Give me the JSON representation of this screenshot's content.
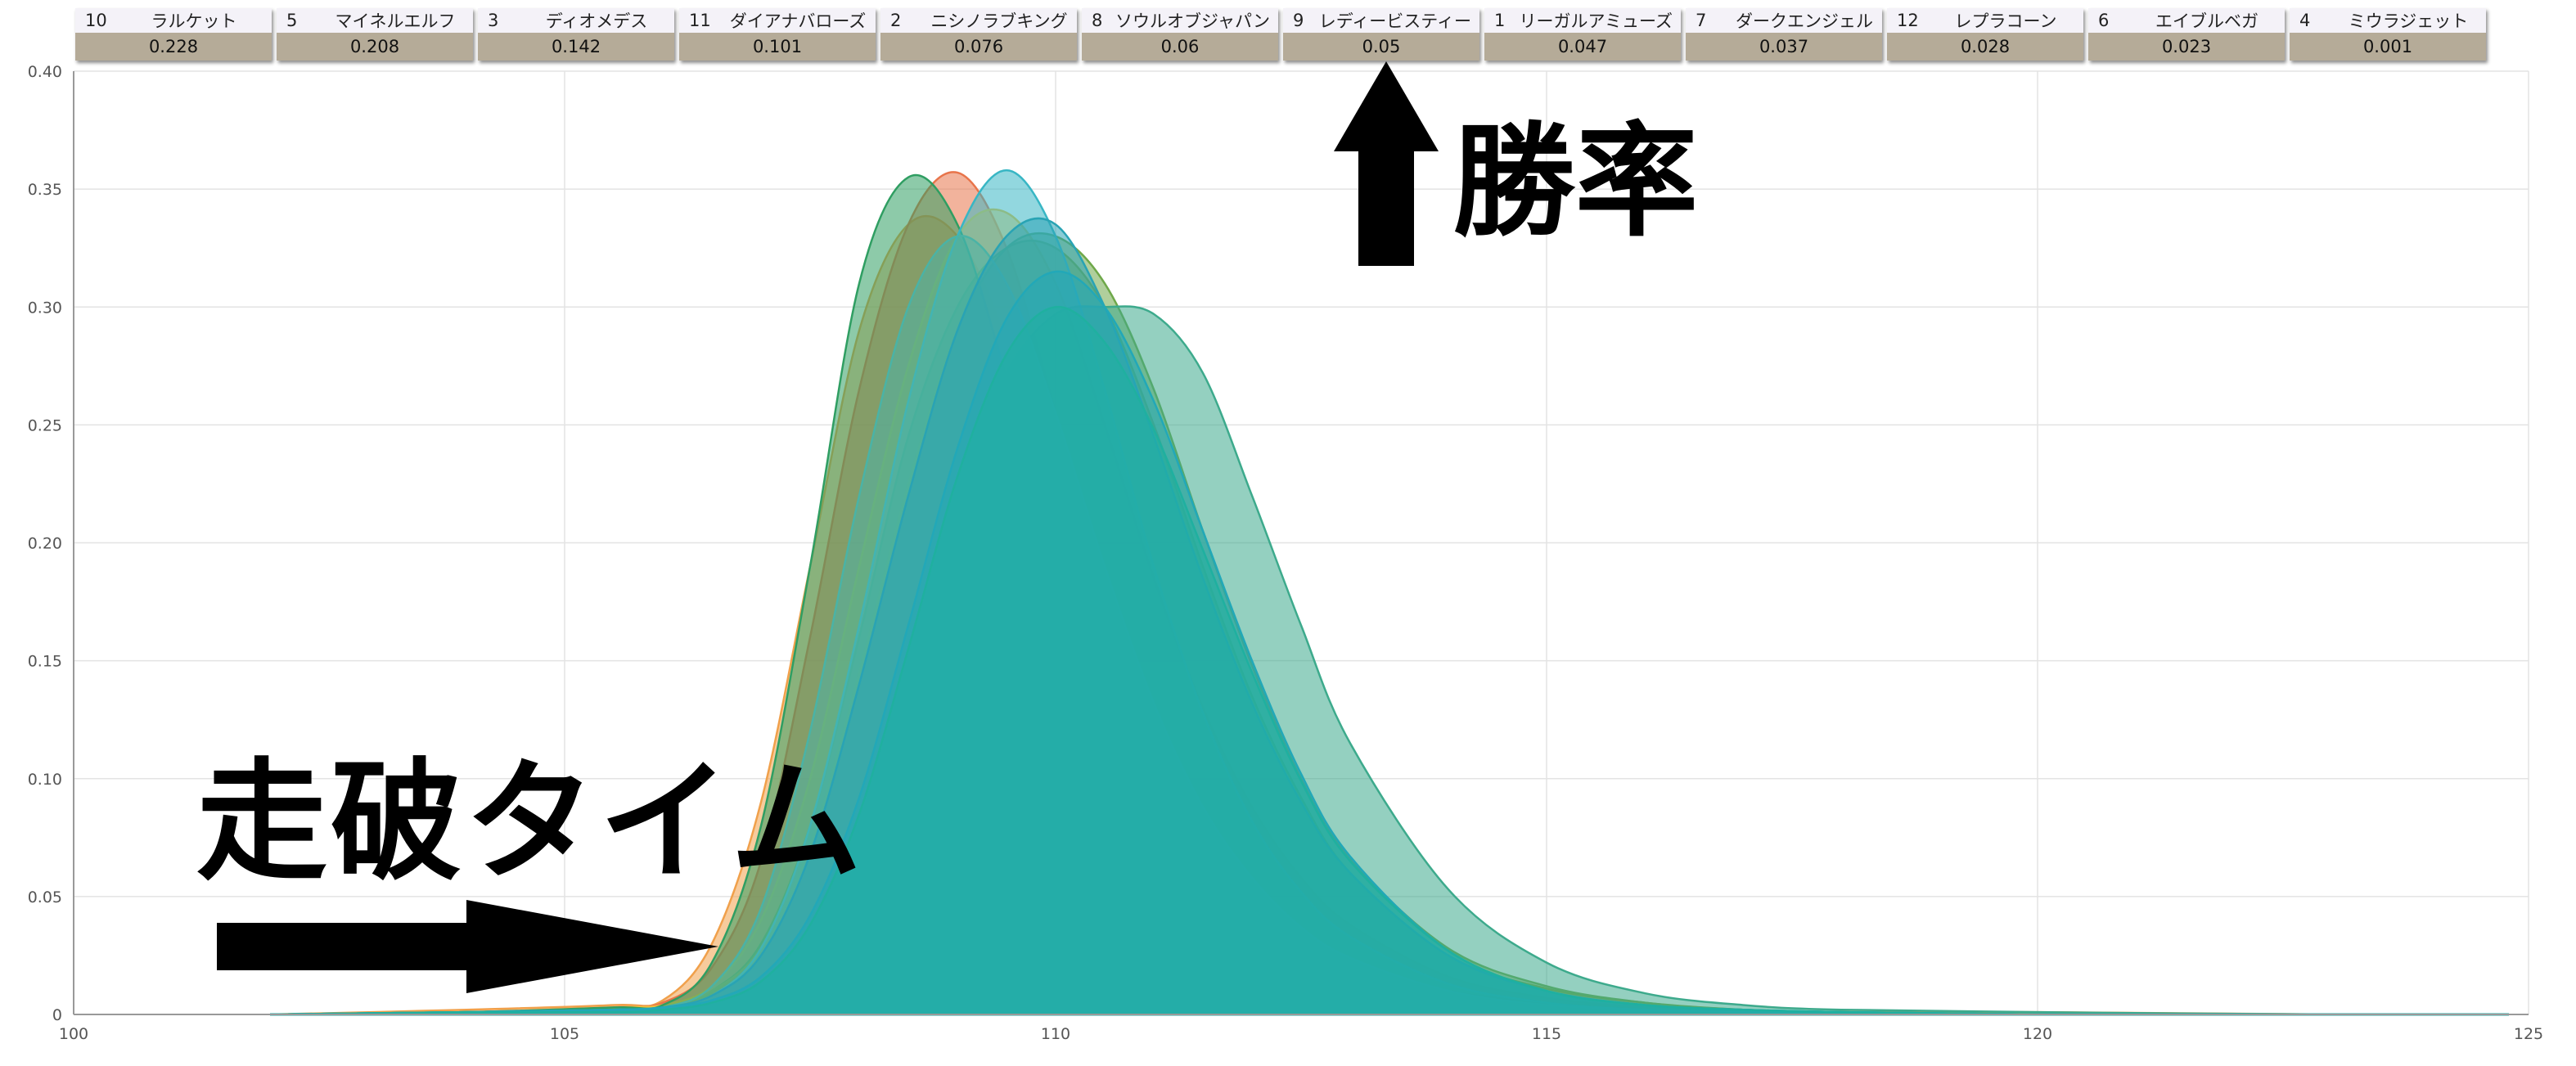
{
  "legend": [
    {
      "num": "10",
      "name": "ラルケット",
      "rate": "0.228",
      "color": "#f0a04b"
    },
    {
      "num": "5",
      "name": "マイネルエルフ",
      "rate": "0.208",
      "color": "#e8744a"
    },
    {
      "num": "3",
      "name": "ディオメデス",
      "rate": "0.142",
      "color": "#f2c33c"
    },
    {
      "num": "11",
      "name": "ダイアナバローズ",
      "rate": "0.101",
      "color": "#7aab3a"
    },
    {
      "num": "2",
      "name": "ニシノラブキング",
      "rate": "0.076",
      "color": "#2f9e62"
    },
    {
      "num": "8",
      "name": "ソウルオブジャパン",
      "rate": "0.06",
      "color": "#6fa84a"
    },
    {
      "num": "9",
      "name": "レディービスティー",
      "rate": "0.05",
      "color": "#38b6c4"
    },
    {
      "num": "1",
      "name": "リーガルアミューズ",
      "rate": "0.047",
      "color": "#3daa8c"
    },
    {
      "num": "7",
      "name": "ダークエンジェル",
      "rate": "0.037",
      "color": "#4ab3a6"
    },
    {
      "num": "12",
      "name": "レプラコーン",
      "rate": "0.028",
      "color": "#29a3b4"
    },
    {
      "num": "6",
      "name": "エイブルベガ",
      "rate": "0.023",
      "color": "#22a8b8"
    },
    {
      "num": "4",
      "name": "ミウラジェット",
      "rate": "0.001",
      "color": "#1fb0a0"
    }
  ],
  "annotations": {
    "win_rate": "勝率",
    "time": "走破タイム"
  },
  "chart_data": {
    "type": "area",
    "xlim": [
      100,
      125
    ],
    "ylim": [
      0,
      0.4
    ],
    "x_ticks": [
      100,
      105,
      110,
      115,
      120,
      125
    ],
    "y_ticks": [
      0,
      0.05,
      0.1,
      0.15,
      0.2,
      0.25,
      0.3,
      0.35,
      0.4
    ],
    "x_tick_labels": [
      "100",
      "105",
      "110",
      "115",
      "120",
      "125"
    ],
    "y_tick_labels": [
      "0",
      "0.05",
      "0.10",
      "0.15",
      "0.20",
      "0.25",
      "0.30",
      "0.35",
      "0.40"
    ],
    "grid": true,
    "x": [
      102,
      104,
      105.5,
      106,
      106.5,
      107,
      107.5,
      108,
      108.5,
      109,
      109.5,
      110,
      110.5,
      111,
      111.5,
      112,
      112.5,
      113,
      114,
      115,
      116,
      117,
      118,
      120,
      123,
      124.8
    ],
    "series": [
      {
        "values": [
          0,
          0.002,
          0.004,
          0.006,
          0.03,
          0.09,
          0.19,
          0.29,
          0.335,
          0.33,
          0.285,
          0.215,
          0.155,
          0.108,
          0.074,
          0.05,
          0.033,
          0.022,
          0.01,
          0.005,
          0.003,
          0.002,
          0.001,
          0.001,
          0,
          0
        ]
      },
      {
        "values": [
          0,
          0.001,
          0.003,
          0.005,
          0.02,
          0.065,
          0.16,
          0.265,
          0.335,
          0.357,
          0.325,
          0.255,
          0.182,
          0.122,
          0.08,
          0.052,
          0.033,
          0.02,
          0.008,
          0.003,
          0.001,
          0.001,
          0,
          0,
          0,
          0
        ]
      },
      {
        "values": [
          0,
          0.001,
          0.003,
          0.004,
          0.012,
          0.04,
          0.1,
          0.19,
          0.275,
          0.33,
          0.34,
          0.31,
          0.25,
          0.185,
          0.13,
          0.088,
          0.058,
          0.038,
          0.016,
          0.007,
          0.003,
          0.001,
          0.001,
          0,
          0,
          0
        ]
      },
      {
        "values": [
          0,
          0.001,
          0.002,
          0.003,
          0.01,
          0.03,
          0.08,
          0.16,
          0.245,
          0.3,
          0.325,
          0.325,
          0.3,
          0.25,
          0.19,
          0.135,
          0.092,
          0.06,
          0.025,
          0.011,
          0.005,
          0.002,
          0.001,
          0,
          0,
          0
        ]
      },
      {
        "values": [
          0,
          0.001,
          0.003,
          0.004,
          0.022,
          0.08,
          0.19,
          0.31,
          0.355,
          0.335,
          0.27,
          0.195,
          0.132,
          0.088,
          0.058,
          0.038,
          0.025,
          0.016,
          0.007,
          0.003,
          0.002,
          0.001,
          0,
          0,
          0,
          0
        ]
      },
      {
        "values": [
          0,
          0.001,
          0.002,
          0.003,
          0.01,
          0.028,
          0.072,
          0.145,
          0.225,
          0.29,
          0.325,
          0.33,
          0.31,
          0.265,
          0.205,
          0.148,
          0.1,
          0.066,
          0.028,
          0.012,
          0.005,
          0.002,
          0.001,
          0,
          0,
          0
        ]
      },
      {
        "values": [
          0,
          0.001,
          0.002,
          0.003,
          0.008,
          0.028,
          0.08,
          0.165,
          0.26,
          0.33,
          0.358,
          0.33,
          0.265,
          0.19,
          0.128,
          0.082,
          0.052,
          0.033,
          0.013,
          0.005,
          0.002,
          0.001,
          0,
          0,
          0,
          0
        ]
      },
      {
        "values": [
          0,
          0.001,
          0.002,
          0.002,
          0.006,
          0.016,
          0.04,
          0.085,
          0.15,
          0.22,
          0.272,
          0.297,
          0.3,
          0.297,
          0.272,
          0.22,
          0.165,
          0.115,
          0.053,
          0.022,
          0.009,
          0.004,
          0.002,
          0.001,
          0,
          0
        ]
      },
      {
        "values": [
          0,
          0.001,
          0.002,
          0.003,
          0.012,
          0.045,
          0.12,
          0.22,
          0.3,
          0.33,
          0.31,
          0.255,
          0.19,
          0.132,
          0.088,
          0.058,
          0.037,
          0.024,
          0.01,
          0.004,
          0.002,
          0.001,
          0,
          0,
          0,
          0
        ]
      },
      {
        "values": [
          0,
          0.001,
          0.002,
          0.003,
          0.008,
          0.025,
          0.068,
          0.14,
          0.22,
          0.29,
          0.33,
          0.335,
          0.3,
          0.245,
          0.185,
          0.132,
          0.09,
          0.06,
          0.025,
          0.01,
          0.004,
          0.002,
          0.001,
          0,
          0,
          0
        ]
      },
      {
        "values": [
          0,
          0.001,
          0.002,
          0.003,
          0.006,
          0.016,
          0.042,
          0.092,
          0.165,
          0.24,
          0.295,
          0.315,
          0.3,
          0.26,
          0.205,
          0.15,
          0.102,
          0.067,
          0.027,
          0.01,
          0.004,
          0.002,
          0.001,
          0,
          0,
          0
        ]
      },
      {
        "values": [
          0,
          0.001,
          0.001,
          0.002,
          0.005,
          0.014,
          0.038,
          0.085,
          0.155,
          0.228,
          0.28,
          0.3,
          0.285,
          0.248,
          0.197,
          0.145,
          0.099,
          0.065,
          0.027,
          0.01,
          0.004,
          0.002,
          0.001,
          0,
          0,
          0
        ]
      }
    ]
  }
}
